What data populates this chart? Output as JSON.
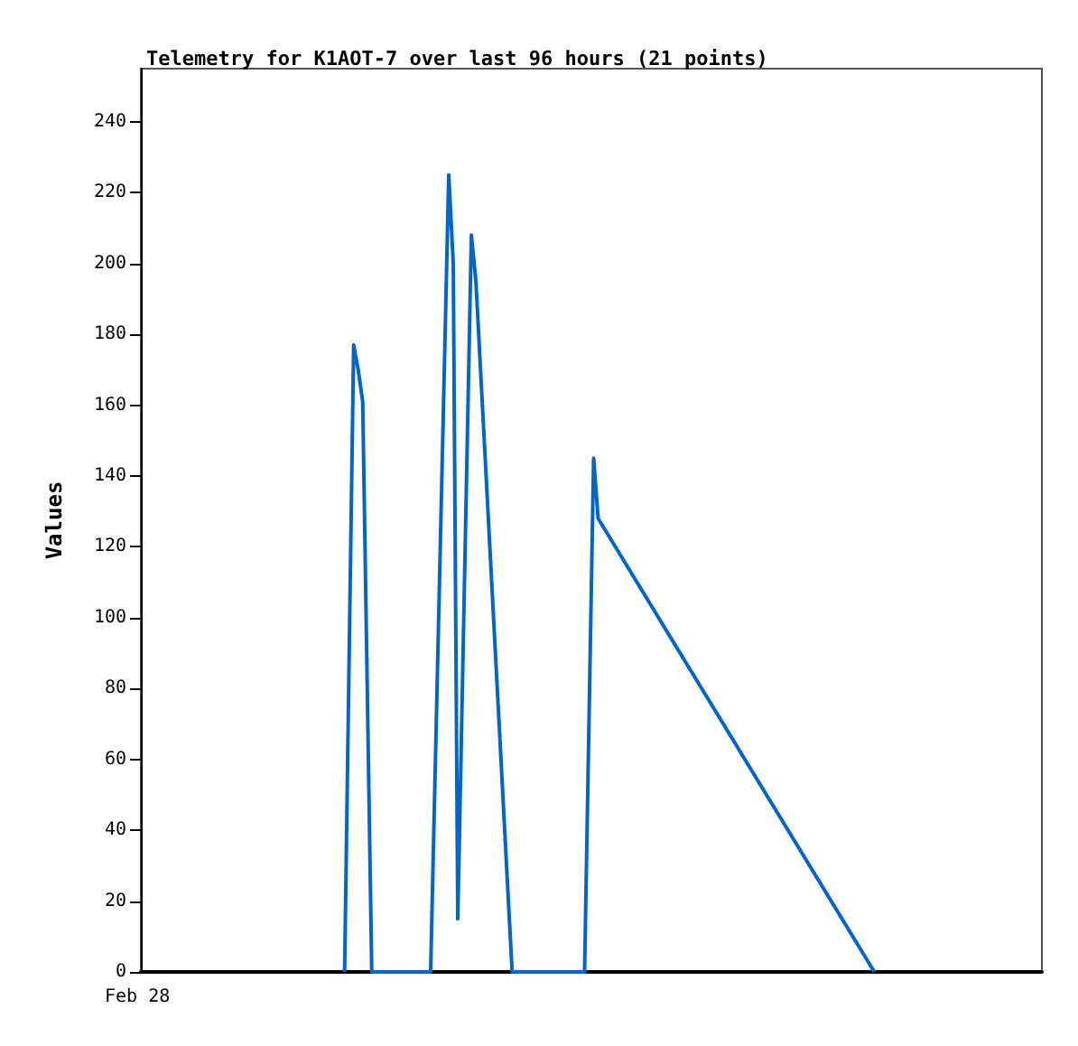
{
  "chart_data": {
    "type": "line",
    "title": "Telemetry for K1AOT-7 over last 96 hours (21 points)",
    "ylabel": "Values",
    "annotations": [
      "Feb 28"
    ],
    "categories": [
      null,
      null,
      null,
      null,
      null,
      null,
      null,
      null,
      null,
      null,
      null,
      null,
      null,
      null,
      null,
      null,
      null,
      null,
      null,
      null,
      null,
      null,
      null,
      null,
      null,
      null,
      null,
      null,
      null,
      null,
      null,
      null,
      null,
      null,
      null,
      null,
      null,
      null,
      null,
      null,
      null,
      null,
      null,
      null,
      null,
      null,
      null,
      null,
      null,
      null,
      null,
      null,
      null,
      null,
      null,
      null,
      null,
      null,
      null,
      null,
      null,
      null,
      null,
      null,
      null,
      null,
      null,
      null,
      null,
      null,
      null,
      null,
      null,
      null,
      null,
      null,
      null,
      null,
      null,
      null,
      null,
      null,
      null,
      null,
      null,
      null,
      null,
      null,
      null,
      null,
      null,
      null,
      null,
      null,
      null,
      null,
      null,
      null,
      null,
      null,
      null,
      null,
      null,
      null,
      null,
      null,
      null,
      null,
      null,
      null,
      null,
      null,
      null,
      null,
      null,
      null,
      null,
      null,
      null,
      null,
      null,
      null,
      null,
      null,
      null,
      null,
      null,
      null,
      null,
      null,
      null,
      null,
      null,
      null,
      null,
      null,
      null,
      null,
      null,
      null,
      null,
      null,
      null,
      null,
      null,
      null,
      null,
      null,
      null,
      null,
      null,
      null,
      null,
      null,
      null,
      null,
      null,
      null,
      null,
      null,
      null,
      null,
      null,
      null,
      null,
      null,
      null,
      null,
      null,
      null,
      null,
      null,
      null,
      null,
      null,
      null,
      null,
      null,
      null,
      null,
      null,
      null,
      null,
      null,
      null,
      null,
      null,
      null,
      null,
      null,
      null,
      null,
      null,
      null,
      null,
      null,
      null,
      null,
      null,
      null
    ],
    "ylim": [
      0,
      255
    ],
    "yticks": [
      0,
      20,
      40,
      60,
      80,
      100,
      120,
      140,
      160,
      180,
      200,
      220,
      240
    ],
    "grid": false,
    "marker": "none",
    "line_style": "solid",
    "series": [
      {
        "color": "#0066cc",
        "values": [
          null,
          null,
          null,
          null,
          null,
          null,
          null,
          null,
          null,
          null,
          null,
          null,
          null,
          null,
          null,
          null,
          null,
          null,
          null,
          null,
          null,
          null,
          null,
          null,
          null,
          null,
          null,
          null,
          null,
          null,
          null,
          null,
          null,
          null,
          null,
          null,
          null,
          null,
          null,
          null,
          null,
          null,
          null,
          null,
          null,
          0,
          null,
          177,
          170,
          161,
          null,
          0,
          null,
          null,
          null,
          null,
          null,
          null,
          null,
          null,
          null,
          null,
          null,
          null,
          0,
          null,
          null,
          null,
          225,
          200,
          15,
          null,
          null,
          208,
          195,
          null,
          null,
          null,
          null,
          null,
          null,
          null,
          0,
          null,
          null,
          null,
          null,
          null,
          null,
          null,
          null,
          null,
          null,
          null,
          null,
          null,
          null,
          null,
          0,
          null,
          145,
          128,
          null,
          null,
          null,
          null,
          null,
          null,
          null,
          null,
          null,
          null,
          null,
          null,
          null,
          null,
          null,
          null,
          null,
          null,
          null,
          null,
          null,
          null,
          null,
          null,
          null,
          null,
          null,
          null,
          null,
          null,
          null,
          null,
          null,
          null,
          null,
          null,
          null,
          null,
          null,
          null,
          null,
          null,
          null,
          null,
          null,
          null,
          null,
          null,
          null,
          null,
          null,
          null,
          null,
          null,
          null,
          null,
          null,
          null,
          null,
          null,
          0,
          null,
          null,
          null,
          null,
          null,
          null,
          null,
          null,
          null,
          null,
          null,
          null,
          null,
          null,
          null,
          null,
          null,
          null,
          null,
          null,
          null,
          null,
          null,
          null,
          null,
          null,
          null,
          null,
          null,
          null,
          null,
          null,
          null,
          null,
          null,
          null,
          null
        ]
      }
    ]
  }
}
